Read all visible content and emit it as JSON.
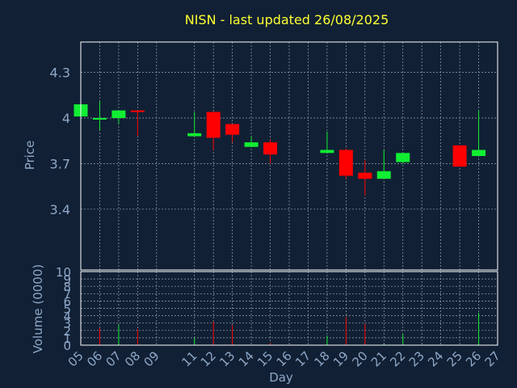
{
  "colors": {
    "background": "#112034",
    "title": "#ffff33",
    "axis_text": "#8fa8c8",
    "frame": "#ffffff",
    "grid": "#9aa6b4",
    "up": "#11ee33",
    "down": "#ff0000"
  },
  "chart_data": [
    {
      "type": "candlestick",
      "title": "NISN - last updated 26/08/2025",
      "ylabel": "Price",
      "ylim": [
        3.0,
        4.5
      ],
      "yticks": [
        "3.4",
        "3.7",
        "4",
        "4.3"
      ],
      "grid": true,
      "x_days": [
        "05",
        "06",
        "07",
        "08",
        "09",
        "11",
        "12",
        "13",
        "14",
        "15",
        "16",
        "17",
        "18",
        "19",
        "20",
        "21",
        "22",
        "23",
        "24",
        "25",
        "26",
        "27"
      ],
      "candles": [
        {
          "day": "05",
          "open": 4.01,
          "close": 4.09,
          "high": 4.09,
          "low": 4.01
        },
        {
          "day": "06",
          "open": 4.0,
          "close": 4.0,
          "high": 4.11,
          "low": 3.92
        },
        {
          "day": "07",
          "open": 4.0,
          "close": 4.05,
          "high": 4.05,
          "low": 3.96
        },
        {
          "day": "08",
          "open": 4.05,
          "close": 4.04,
          "high": 4.05,
          "low": 3.88
        },
        {
          "day": "11",
          "open": 3.88,
          "close": 3.9,
          "high": 4.04,
          "low": 3.88
        },
        {
          "day": "12",
          "open": 4.04,
          "close": 3.87,
          "high": 4.04,
          "low": 3.79
        },
        {
          "day": "13",
          "open": 3.96,
          "close": 3.89,
          "high": 3.96,
          "low": 3.84
        },
        {
          "day": "14",
          "open": 3.81,
          "close": 3.84,
          "high": 3.88,
          "low": 3.81
        },
        {
          "day": "15",
          "open": 3.84,
          "close": 3.76,
          "high": 3.86,
          "low": 3.7
        },
        {
          "day": "18",
          "open": 3.77,
          "close": 3.79,
          "high": 3.91,
          "low": 3.77
        },
        {
          "day": "19",
          "open": 3.79,
          "close": 3.62,
          "high": 3.8,
          "low": 3.6
        },
        {
          "day": "20",
          "open": 3.64,
          "close": 3.6,
          "high": 3.72,
          "low": 3.49
        },
        {
          "day": "21",
          "open": 3.6,
          "close": 3.65,
          "high": 3.79,
          "low": 3.6
        },
        {
          "day": "22",
          "open": 3.71,
          "close": 3.77,
          "high": 3.77,
          "low": 3.7
        },
        {
          "day": "25",
          "open": 3.82,
          "close": 3.68,
          "high": 3.82,
          "low": 3.68
        },
        {
          "day": "26",
          "open": 3.75,
          "close": 3.79,
          "high": 4.05,
          "low": 3.75
        }
      ]
    },
    {
      "type": "bar",
      "ylabel": "Volume (0000)",
      "xlabel": "Day",
      "ylim": [
        0,
        10
      ],
      "yticks": [
        "0",
        "1",
        "2",
        "3",
        "4",
        "5",
        "6",
        "7",
        "8",
        "9",
        "10"
      ],
      "grid": true,
      "values": [
        {
          "day": "06",
          "value": 2.3,
          "dir": "down"
        },
        {
          "day": "07",
          "value": 2.8,
          "dir": "up"
        },
        {
          "day": "08",
          "value": 2.2,
          "dir": "down"
        },
        {
          "day": "11",
          "value": 1.0,
          "dir": "up"
        },
        {
          "day": "12",
          "value": 3.2,
          "dir": "down"
        },
        {
          "day": "13",
          "value": 2.7,
          "dir": "down"
        },
        {
          "day": "15",
          "value": 0.3,
          "dir": "down"
        },
        {
          "day": "18",
          "value": 1.3,
          "dir": "up"
        },
        {
          "day": "19",
          "value": 3.8,
          "dir": "down"
        },
        {
          "day": "20",
          "value": 2.9,
          "dir": "down"
        },
        {
          "day": "21",
          "value": 0.2,
          "dir": "up"
        },
        {
          "day": "22",
          "value": 1.5,
          "dir": "up"
        },
        {
          "day": "26",
          "value": 4.4,
          "dir": "up"
        }
      ]
    }
  ]
}
